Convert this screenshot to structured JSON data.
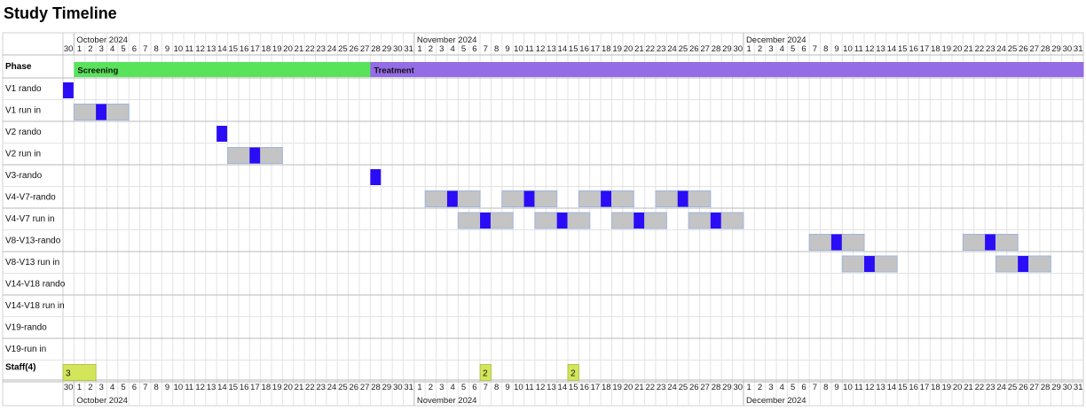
{
  "page": {
    "title": "Study Timeline"
  },
  "chart_data": {
    "type": "gantt",
    "title": "Study Timeline",
    "x_axis": {
      "type": "date",
      "range": [
        "2024-09-30",
        "2024-12-31"
      ],
      "day_step": 1,
      "months": [
        {
          "label": "October 2024",
          "start": "2024-10-01"
        },
        {
          "label": "November 2024",
          "start": "2024-11-01"
        },
        {
          "label": "December 2024",
          "start": "2024-12-01"
        }
      ],
      "position": [
        "top",
        "bottom"
      ]
    },
    "grid": true,
    "colors": {
      "screening": "#59e35b",
      "treatment": "#946ce6",
      "visit": "#2a0cf6",
      "window": "#c4c4c4",
      "window_border": "#9fb4e0",
      "staff": "#d3e65a",
      "grid": "#e3e3e3",
      "row_divider": "#b9b9b9"
    },
    "phase_row": {
      "label": "Phase",
      "phases": [
        {
          "name": "Screening",
          "start": "2024-10-01",
          "end": "2024-10-28",
          "color": "#59e35b"
        },
        {
          "name": "Treatment",
          "start": "2024-10-28",
          "end": "2024-12-31",
          "color": "#946ce6"
        }
      ]
    },
    "rows": [
      {
        "label": "V1 rando",
        "windows": [],
        "visits": [
          "2024-09-30"
        ]
      },
      {
        "label": "V1 run in",
        "windows": [
          {
            "start": "2024-10-01",
            "end": "2024-10-05"
          }
        ],
        "visits": [
          "2024-10-03"
        ]
      },
      {
        "label": "V2 rando",
        "windows": [],
        "visits": [
          "2024-10-14"
        ]
      },
      {
        "label": "V2 run in",
        "windows": [
          {
            "start": "2024-10-15",
            "end": "2024-10-19"
          }
        ],
        "visits": [
          "2024-10-17"
        ]
      },
      {
        "label": "V3-rando",
        "windows": [],
        "visits": [
          "2024-10-28"
        ]
      },
      {
        "label": "V4-V7-rando",
        "windows": [
          {
            "start": "2024-11-02",
            "end": "2024-11-06"
          },
          {
            "start": "2024-11-09",
            "end": "2024-11-13"
          },
          {
            "start": "2024-11-16",
            "end": "2024-11-20"
          },
          {
            "start": "2024-11-23",
            "end": "2024-11-27"
          }
        ],
        "visits": [
          "2024-11-04",
          "2024-11-11",
          "2024-11-18",
          "2024-11-25"
        ]
      },
      {
        "label": "V4-V7 run in",
        "windows": [
          {
            "start": "2024-11-05",
            "end": "2024-11-09"
          },
          {
            "start": "2024-11-12",
            "end": "2024-11-16"
          },
          {
            "start": "2024-11-19",
            "end": "2024-11-23"
          },
          {
            "start": "2024-11-26",
            "end": "2024-11-30"
          }
        ],
        "visits": [
          "2024-11-07",
          "2024-11-14",
          "2024-11-21",
          "2024-11-28"
        ]
      },
      {
        "label": "V8-V13-rando",
        "windows": [
          {
            "start": "2024-12-07",
            "end": "2024-12-11"
          },
          {
            "start": "2024-12-21",
            "end": "2024-12-25"
          }
        ],
        "visits": [
          "2024-12-09",
          "2024-12-23"
        ]
      },
      {
        "label": "V8-V13 run in",
        "windows": [
          {
            "start": "2024-12-10",
            "end": "2024-12-14"
          },
          {
            "start": "2024-12-24",
            "end": "2024-12-28"
          }
        ],
        "visits": [
          "2024-12-12",
          "2024-12-26"
        ]
      },
      {
        "label": "V14-V18 rando",
        "windows": [],
        "visits": []
      },
      {
        "label": "V14-V18 run in",
        "windows": [],
        "visits": []
      },
      {
        "label": "V19-rando",
        "windows": [],
        "visits": []
      },
      {
        "label": "V19-run in",
        "windows": [],
        "visits": []
      }
    ],
    "staff_row": {
      "label": "Staff(4)",
      "entries": [
        {
          "start": "2024-09-30",
          "end": "2024-10-02",
          "value": "3"
        },
        {
          "start": "2024-11-07",
          "end": "2024-11-07",
          "value": "2"
        },
        {
          "start": "2024-11-15",
          "end": "2024-11-15",
          "value": "2"
        }
      ]
    }
  }
}
